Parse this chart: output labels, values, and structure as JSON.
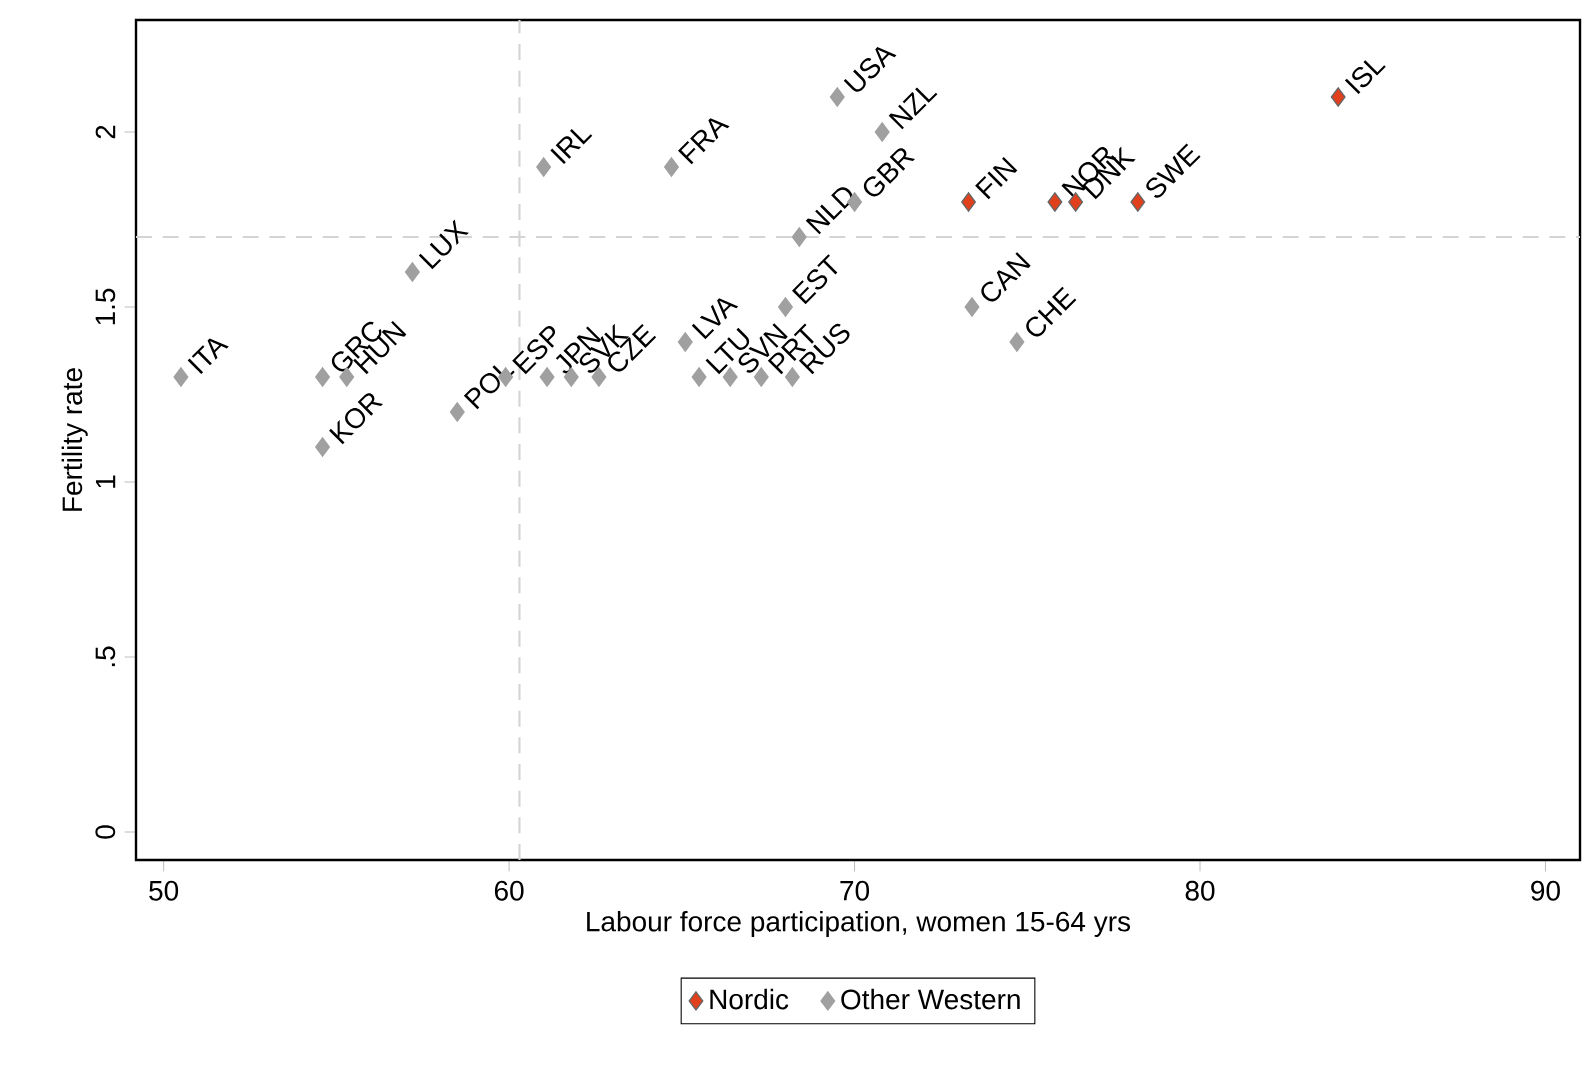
{
  "chart_data": {
    "type": "scatter",
    "xlabel": "Labour force participation, women 15-64 yrs",
    "ylabel": "Fertility rate",
    "xlim": [
      49.2,
      91
    ],
    "ylim": [
      -0.08,
      2.32
    ],
    "xticks": [
      50,
      60,
      70,
      80,
      90
    ],
    "yticks": [
      0,
      {
        "value": 0.5,
        "label": ".5"
      },
      1,
      {
        "value": 1.5,
        "label": "1.5"
      },
      2
    ],
    "grid": false,
    "legend": "bottom",
    "marker": "diamond",
    "series": [
      {
        "name": "Nordic",
        "color": "#e0401c",
        "x": [
          73.3,
          75.8,
          76.4,
          78.2,
          84.0
        ],
        "values": [
          1.8,
          1.8,
          1.8,
          1.8,
          2.1
        ]
      },
      {
        "name": "Other Western",
        "color": "#a0a0a0",
        "x": [
          50.5,
          54.6,
          55.3,
          54.6,
          57.2,
          58.5,
          59.9,
          61.0,
          61.1,
          61.8,
          62.6,
          64.7,
          65.1,
          65.5,
          66.4,
          67.3,
          68.2,
          68.0,
          68.4,
          70.0,
          69.5,
          70.8,
          73.4,
          74.7
        ],
        "values": [
          1.3,
          1.3,
          1.3,
          1.1,
          1.6,
          1.2,
          1.3,
          1.9,
          1.3,
          1.3,
          1.3,
          1.9,
          1.4,
          1.3,
          1.3,
          1.3,
          1.3,
          1.5,
          1.7,
          1.8,
          2.1,
          2.0,
          1.5,
          1.4
        ]
      }
    ],
    "ref_lines": [
      {
        "axis": "x",
        "value": 60.3,
        "color": "#d4d4d4",
        "line_style": "dashed"
      },
      {
        "axis": "y",
        "value": 1.7,
        "color": "#d4d4d4",
        "line_style": "dashed"
      }
    ],
    "annotations": [
      {
        "text": "FIN",
        "x": 73.3,
        "y": 1.8
      },
      {
        "text": "NOR",
        "x": 75.8,
        "y": 1.8
      },
      {
        "text": "DNK",
        "x": 76.4,
        "y": 1.8
      },
      {
        "text": "SWE",
        "x": 78.2,
        "y": 1.8
      },
      {
        "text": "ISL",
        "x": 84.0,
        "y": 2.1
      },
      {
        "text": "ITA",
        "x": 50.5,
        "y": 1.3
      },
      {
        "text": "GRC",
        "x": 54.6,
        "y": 1.3
      },
      {
        "text": "HUN",
        "x": 55.3,
        "y": 1.3
      },
      {
        "text": "KOR",
        "x": 54.6,
        "y": 1.1
      },
      {
        "text": "LUX",
        "x": 57.2,
        "y": 1.6
      },
      {
        "text": "POL",
        "x": 58.5,
        "y": 1.2
      },
      {
        "text": "ESP",
        "x": 59.9,
        "y": 1.3
      },
      {
        "text": "IRL",
        "x": 61.0,
        "y": 1.9
      },
      {
        "text": "JPN",
        "x": 61.1,
        "y": 1.3
      },
      {
        "text": "SVK",
        "x": 61.8,
        "y": 1.3
      },
      {
        "text": "CZE",
        "x": 62.6,
        "y": 1.3
      },
      {
        "text": "FRA",
        "x": 64.7,
        "y": 1.9
      },
      {
        "text": "LVA",
        "x": 65.1,
        "y": 1.4
      },
      {
        "text": "LTU",
        "x": 65.5,
        "y": 1.3
      },
      {
        "text": "SVN",
        "x": 66.4,
        "y": 1.3
      },
      {
        "text": "PRT",
        "x": 67.3,
        "y": 1.3
      },
      {
        "text": "RUS",
        "x": 68.2,
        "y": 1.3
      },
      {
        "text": "EST",
        "x": 68.0,
        "y": 1.5
      },
      {
        "text": "NLD",
        "x": 68.4,
        "y": 1.7
      },
      {
        "text": "GBR",
        "x": 70.0,
        "y": 1.8
      },
      {
        "text": "USA",
        "x": 69.5,
        "y": 2.1
      },
      {
        "text": "NZL",
        "x": 70.8,
        "y": 2.0
      },
      {
        "text": "CAN",
        "x": 73.4,
        "y": 1.5
      },
      {
        "text": "CHE",
        "x": 74.7,
        "y": 1.4
      }
    ]
  }
}
